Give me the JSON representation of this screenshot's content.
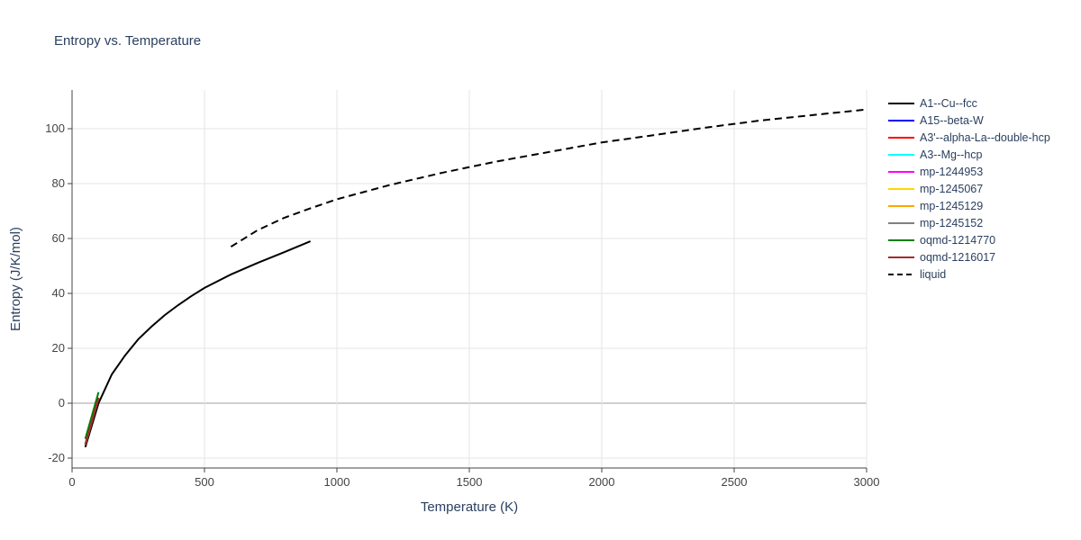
{
  "chart_data": {
    "type": "line",
    "title": "Entropy vs. Temperature",
    "x_label": "Temperature (K)",
    "y_label": "Entropy (J/K/mol)",
    "xlim": [
      0,
      3000
    ],
    "ylim": [
      -23.6,
      114.1
    ],
    "xticks": [
      0,
      500,
      1000,
      1500,
      2000,
      2500,
      3000
    ],
    "yticks": [
      -20,
      0,
      20,
      40,
      60,
      80,
      100
    ],
    "grid": true,
    "legend": "right",
    "series": [
      {
        "name": "A1--Cu--fcc",
        "color": "#000000",
        "dash": "solid",
        "x": [
          50,
          100,
          150,
          200,
          250,
          300,
          350,
          400,
          450,
          500,
          600,
          700,
          800,
          900
        ],
        "values": [
          -16,
          0,
          10.5,
          17.4,
          23.3,
          27.9,
          32.1,
          35.7,
          39,
          42,
          46.9,
          51.1,
          55,
          59
        ]
      },
      {
        "name": "A15--beta-W",
        "color": "#0000ff",
        "dash": "solid",
        "x": [
          50,
          100
        ],
        "values": [
          -15,
          2
        ]
      },
      {
        "name": "A3'--alpha-La--double-hcp",
        "color": "#ff0000",
        "dash": "solid",
        "x": [
          50,
          100
        ],
        "values": [
          -15,
          2
        ]
      },
      {
        "name": "A3--Mg--hcp",
        "color": "#00ffff",
        "dash": "solid",
        "x": [
          50,
          100
        ],
        "values": [
          -15,
          2
        ]
      },
      {
        "name": "mp-1244953",
        "color": "#ff00ff",
        "dash": "solid",
        "x": [
          50,
          100
        ],
        "values": [
          -15,
          2
        ]
      },
      {
        "name": "mp-1245067",
        "color": "#ffd700",
        "dash": "solid",
        "x": [
          50,
          100
        ],
        "values": [
          -15,
          2
        ]
      },
      {
        "name": "mp-1245129",
        "color": "#ffa500",
        "dash": "solid",
        "x": [
          50,
          100
        ],
        "values": [
          -15,
          2
        ]
      },
      {
        "name": "mp-1245152",
        "color": "#808080",
        "dash": "solid",
        "x": [
          50,
          100
        ],
        "values": [
          -15,
          2
        ]
      },
      {
        "name": "oqmd-1214770",
        "color": "#008000",
        "dash": "solid",
        "x": [
          50,
          100
        ],
        "values": [
          -13,
          4
        ]
      },
      {
        "name": "oqmd-1216017",
        "color": "#a52a2a",
        "dash": "solid",
        "x": [
          50,
          100
        ],
        "values": [
          -15,
          2
        ]
      },
      {
        "name": "liquid",
        "color": "#000000",
        "dash": "dash",
        "x": [
          600,
          700,
          800,
          900,
          1000,
          1200,
          1400,
          1600,
          1800,
          2000,
          2200,
          2400,
          2600,
          2800,
          3000
        ],
        "values": [
          57,
          63,
          67.5,
          71,
          74.3,
          79.5,
          84,
          88,
          91.5,
          95,
          97.7,
          100.5,
          103,
          105,
          107
        ]
      }
    ]
  }
}
